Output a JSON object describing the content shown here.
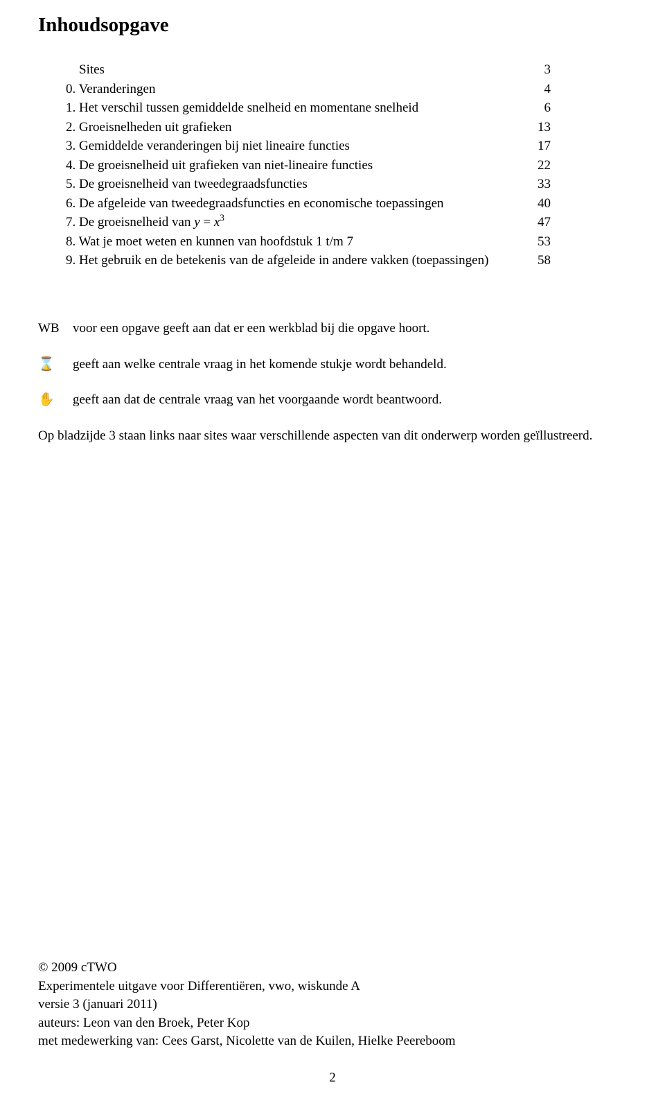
{
  "title": "Inhoudsopgave",
  "toc": [
    {
      "label": "    Sites",
      "page": "3"
    },
    {
      "label": "0. Veranderingen",
      "page": "4"
    },
    {
      "label": "1. Het verschil tussen gemiddelde snelheid en momentane snelheid",
      "page": "6"
    },
    {
      "label": "2. Groeisnelheden uit grafieken",
      "page": "13"
    },
    {
      "label": "3. Gemiddelde veranderingen bij niet lineaire functies",
      "page": "17"
    },
    {
      "label": "4. De groeisnelheid uit grafieken van niet-lineaire functies",
      "page": "22"
    },
    {
      "label": "5. De groeisnelheid van tweedegraadsfuncties",
      "page": "33"
    },
    {
      "label": "6. De afgeleide van tweedegraadsfuncties en economische toepassingen",
      "page": "40"
    },
    {
      "label_html": "7. De groeisnelheid van <span class=\"italic\">y</span> = <span class=\"italic\">x</span><sup>3</sup>",
      "page": "47"
    },
    {
      "label": "8. Wat je moet weten en kunnen van hoofdstuk 1 t/m 7",
      "page": "53"
    },
    {
      "label": "9. Het gebruik en de betekenis van de afgeleide in andere vakken (toepassingen)",
      "page": "58"
    }
  ],
  "legend": [
    {
      "sym": "WB",
      "text": "voor een opgave geeft aan dat er een werkblad bij die opgave hoort."
    },
    {
      "sym": "⌛",
      "text": "geeft aan welke centrale vraag in het komende stukje wordt behandeld."
    },
    {
      "sym": "✋",
      "text": "geeft aan dat de centrale vraag van het voorgaande wordt beantwoord."
    }
  ],
  "note": "Op bladzijde 3 staan links naar sites waar verschillende aspecten van dit onderwerp worden geïllustreerd.",
  "footer": {
    "copyright": "© 2009  cTWO",
    "edition": "Experimentele uitgave voor Differentiëren, vwo, wiskunde A",
    "version": "versie 3 (januari 2011)",
    "authors": "auteurs: Leon van den Broek, Peter Kop",
    "contrib": "met medewerking van: Cees Garst, Nicolette van de Kuilen, Hielke Peereboom"
  },
  "pagenum": "2"
}
